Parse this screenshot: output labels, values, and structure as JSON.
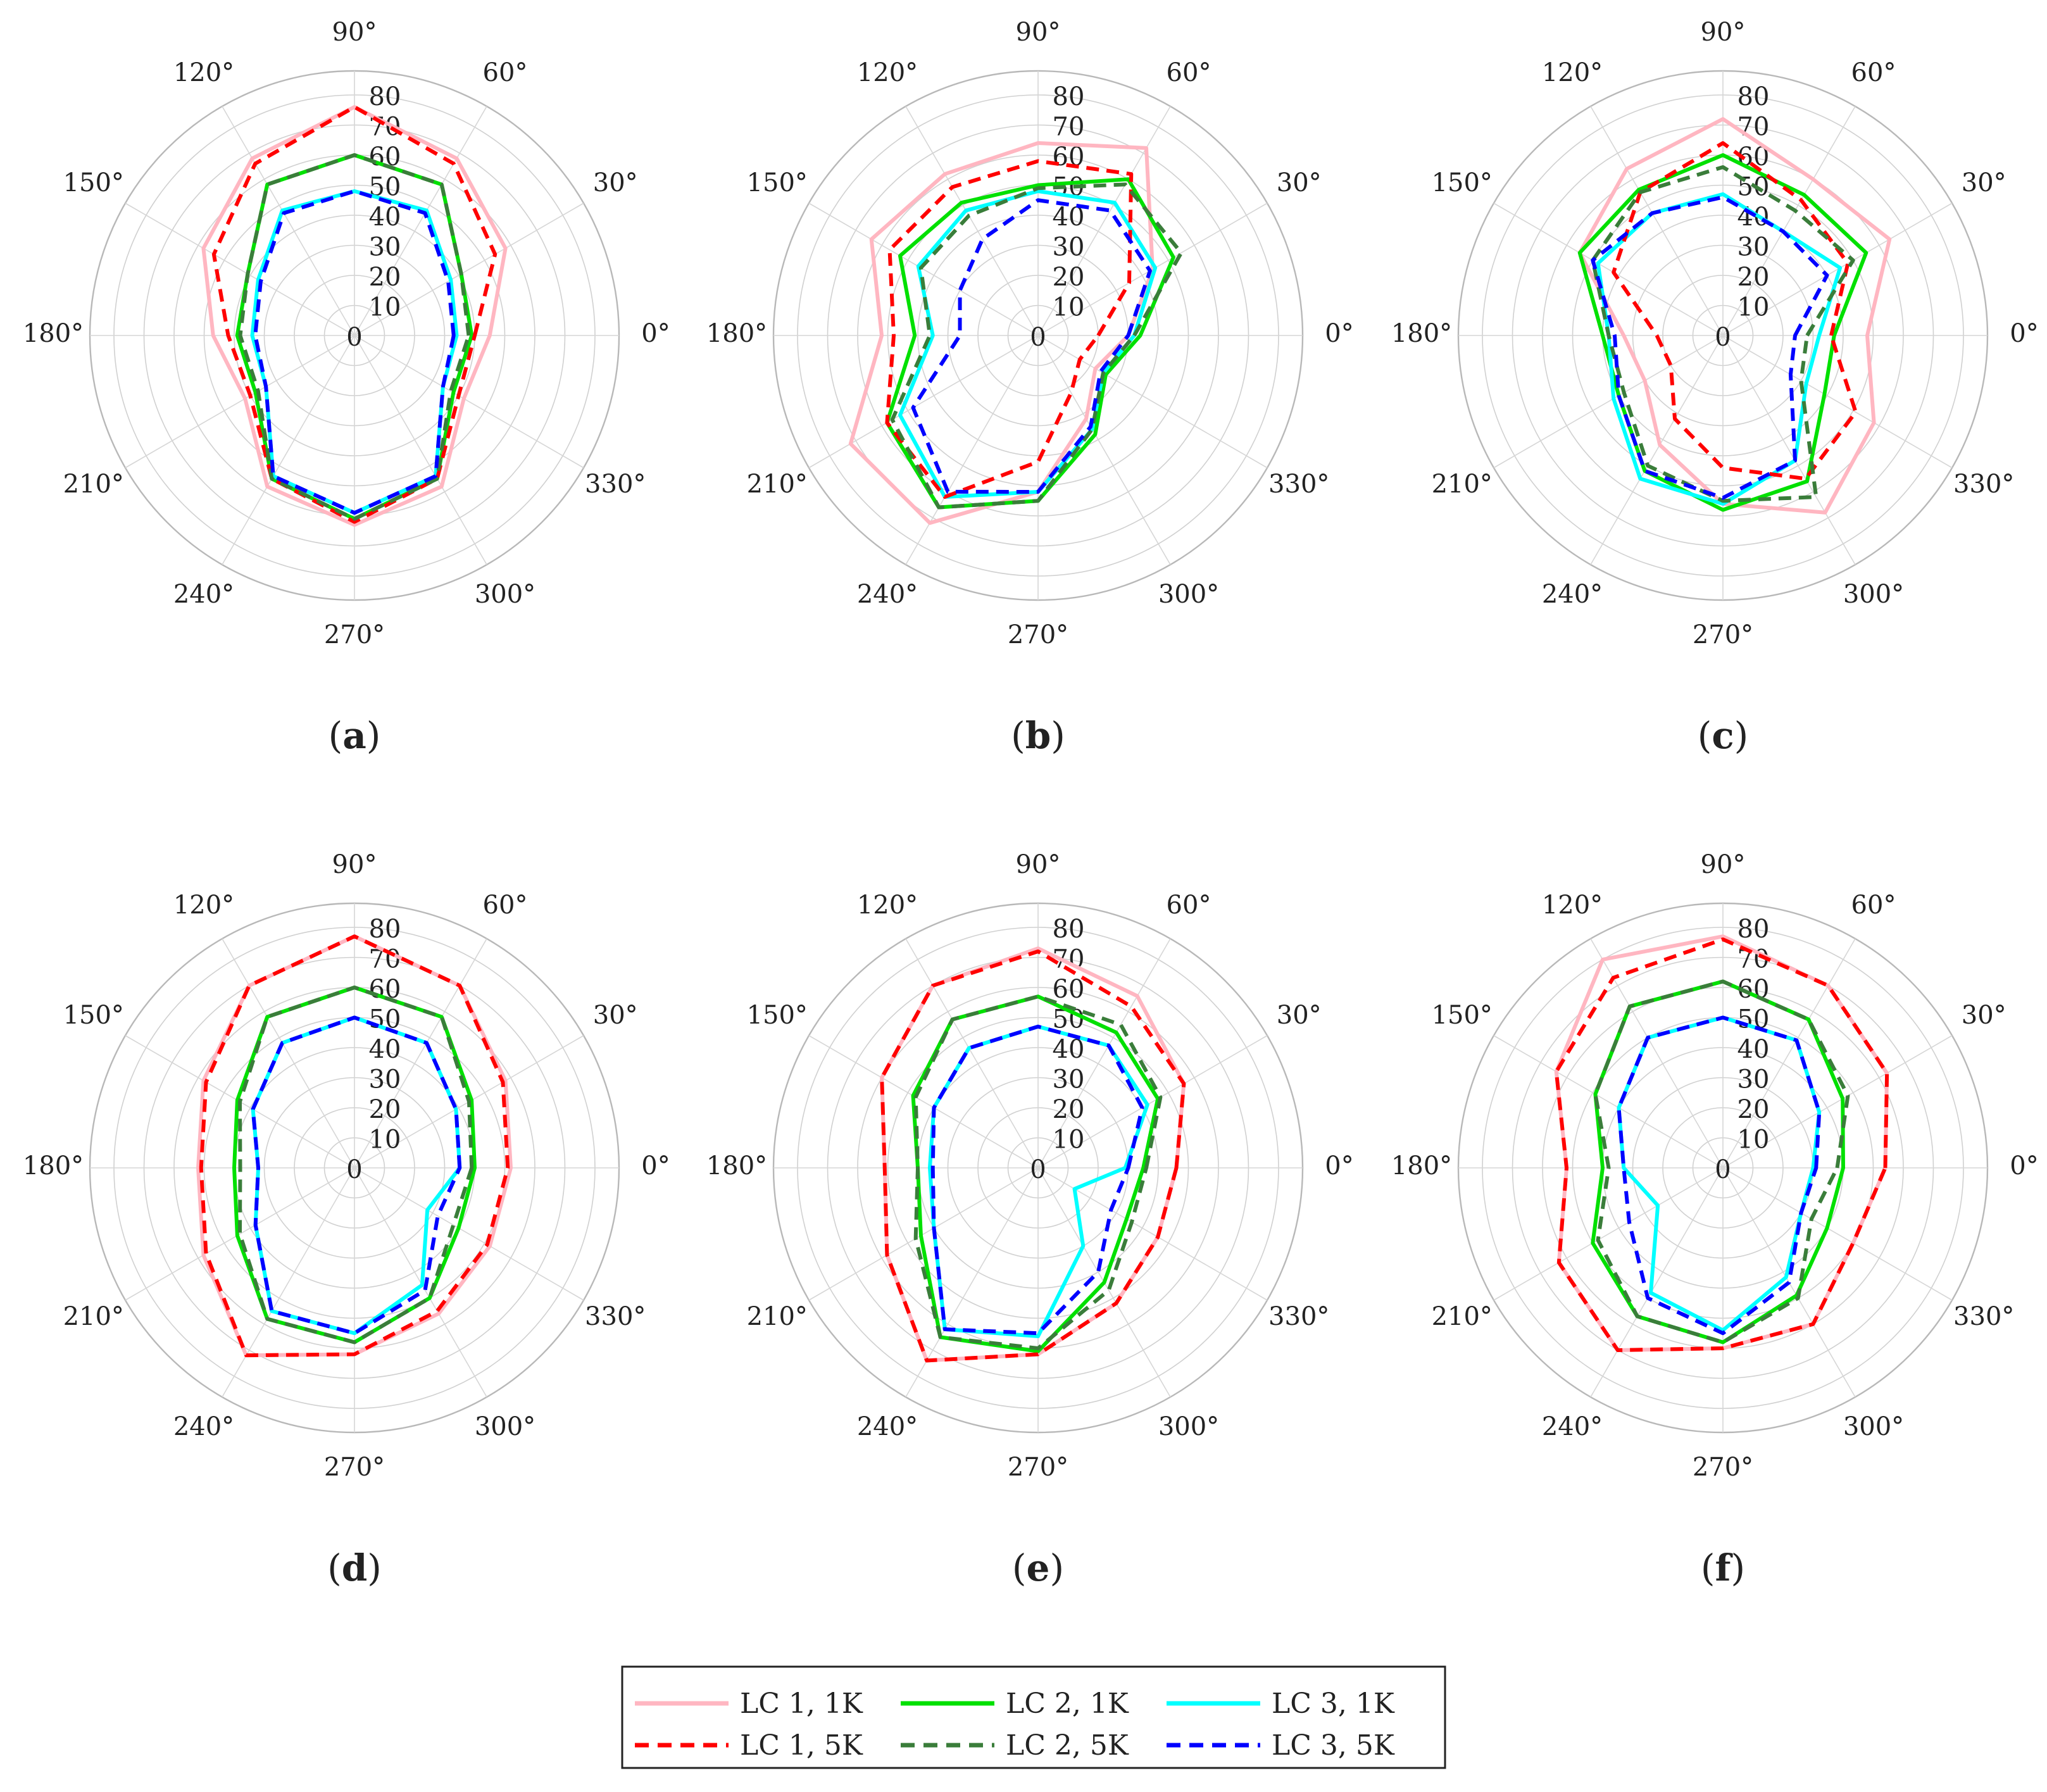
{
  "chart_data": [
    {
      "type": "polar-line",
      "panel_label": "a",
      "radial_range": [
        0,
        80
      ],
      "radial_ticks": [
        "0",
        "10",
        "20",
        "30",
        "40",
        "50",
        "60",
        "70",
        "80"
      ],
      "angle_ticks": [
        "0°",
        "30°",
        "60°",
        "90°",
        "120°",
        "150°",
        "180°",
        "210°",
        "240°",
        "270°",
        "300°",
        "330°"
      ],
      "angles_deg": [
        0,
        30,
        60,
        90,
        120,
        150,
        180,
        210,
        240,
        270,
        300,
        330
      ],
      "series": [
        {
          "name": "LC 1, 1K",
          "values": [
            45,
            58,
            68,
            76,
            68,
            58,
            47,
            42,
            58,
            63,
            58,
            42
          ]
        },
        {
          "name": "LC 1, 5K",
          "values": [
            40,
            54,
            66,
            76,
            66,
            54,
            42,
            40,
            55,
            62,
            55,
            40
          ]
        },
        {
          "name": "LC 2, 1K",
          "values": [
            39,
            41,
            58,
            60,
            58,
            41,
            39,
            38,
            55,
            61,
            55,
            38
          ]
        },
        {
          "name": "LC 2, 5K",
          "values": [
            38,
            41,
            58,
            60,
            58,
            41,
            38,
            37,
            55,
            61,
            55,
            37
          ]
        },
        {
          "name": "LC 3, 1K",
          "values": [
            34,
            37,
            48,
            48,
            48,
            37,
            34,
            34,
            54,
            59,
            54,
            34
          ]
        },
        {
          "name": "LC 3, 5K",
          "values": [
            33,
            36,
            47,
            48,
            47,
            36,
            33,
            34,
            54,
            59,
            54,
            34
          ]
        }
      ]
    },
    {
      "type": "polar-line",
      "panel_label": "b",
      "radial_range": [
        0,
        80
      ],
      "radial_ticks": [
        "0",
        "10",
        "20",
        "30",
        "40",
        "50",
        "60",
        "70",
        "80"
      ],
      "angle_ticks": [
        "0°",
        "30°",
        "60°",
        "90°",
        "120°",
        "150°",
        "180°",
        "210°",
        "240°",
        "270°",
        "300°",
        "330°"
      ],
      "angles_deg": [
        0,
        30,
        60,
        90,
        120,
        150,
        180,
        210,
        240,
        270,
        300,
        330
      ],
      "series": [
        {
          "name": "LC 1, 1K",
          "values": [
            30,
            44,
            72,
            64,
            62,
            64,
            52,
            72,
            72,
            52,
            32,
            22
          ]
        },
        {
          "name": "LC 1, 5K",
          "values": [
            20,
            35,
            62,
            58,
            57,
            57,
            48,
            58,
            62,
            42,
            22,
            16
          ]
        },
        {
          "name": "LC 2, 1K",
          "values": [
            34,
            52,
            60,
            50,
            51,
            53,
            41,
            58,
            66,
            55,
            38,
            26
          ]
        },
        {
          "name": "LC 2, 5K",
          "values": [
            32,
            55,
            58,
            49,
            46,
            45,
            36,
            56,
            66,
            55,
            36,
            25
          ]
        },
        {
          "name": "LC 3, 1K",
          "values": [
            32,
            45,
            51,
            48,
            48,
            46,
            35,
            53,
            62,
            52,
            36,
            25
          ]
        },
        {
          "name": "LC 3, 5K",
          "values": [
            30,
            43,
            48,
            45,
            37,
            30,
            26,
            48,
            60,
            52,
            35,
            24
          ]
        }
      ]
    },
    {
      "type": "polar-line",
      "panel_label": "c",
      "radial_range": [
        0,
        80
      ],
      "radial_ticks": [
        "0",
        "10",
        "20",
        "30",
        "40",
        "50",
        "60",
        "70",
        "80"
      ],
      "angle_ticks": [
        "0°",
        "30°",
        "60°",
        "90°",
        "120°",
        "150°",
        "180°",
        "210°",
        "240°",
        "270°",
        "300°",
        "330°"
      ],
      "angles_deg": [
        0,
        30,
        60,
        90,
        120,
        150,
        180,
        210,
        240,
        270,
        300,
        330
      ],
      "series": [
        {
          "name": "LC 1, 1K",
          "values": [
            48,
            64,
            60,
            72,
            64,
            55,
            33,
            30,
            42,
            56,
            68,
            58
          ]
        },
        {
          "name": "LC 1, 5K",
          "values": [
            36,
            48,
            52,
            64,
            55,
            42,
            22,
            20,
            32,
            44,
            55,
            51
          ]
        },
        {
          "name": "LC 2, 1K",
          "values": [
            37,
            55,
            54,
            60,
            56,
            55,
            40,
            40,
            52,
            58,
            56,
            39
          ]
        },
        {
          "name": "LC 2, 5K",
          "values": [
            28,
            50,
            48,
            56,
            55,
            50,
            38,
            38,
            50,
            55,
            62,
            30
          ]
        },
        {
          "name": "LC 3, 1K",
          "values": [
            32,
            45,
            40,
            47,
            47,
            48,
            38,
            42,
            55,
            56,
            48,
            32
          ]
        },
        {
          "name": "LC 3, 5K",
          "values": [
            24,
            40,
            40,
            46,
            47,
            50,
            36,
            40,
            52,
            54,
            48,
            26
          ]
        }
      ]
    },
    {
      "type": "polar-line",
      "panel_label": "d",
      "radial_range": [
        0,
        80
      ],
      "radial_ticks": [
        "0",
        "10",
        "20",
        "30",
        "40",
        "50",
        "60",
        "70",
        "80"
      ],
      "angle_ticks": [
        "0°",
        "30°",
        "60°",
        "90°",
        "120°",
        "150°",
        "180°",
        "210°",
        "240°",
        "270°",
        "300°",
        "330°"
      ],
      "angles_deg": [
        0,
        30,
        60,
        90,
        120,
        150,
        180,
        210,
        240,
        270,
        300,
        330
      ],
      "series": [
        {
          "name": "LC 1, 1K",
          "values": [
            52,
            58,
            70,
            77,
            70,
            58,
            52,
            58,
            72,
            62,
            56,
            52
          ]
        },
        {
          "name": "LC 1, 5K",
          "values": [
            51,
            57,
            70,
            77,
            70,
            57,
            51,
            57,
            72,
            62,
            55,
            51
          ]
        },
        {
          "name": "LC 2, 1K",
          "values": [
            40,
            45,
            58,
            60,
            58,
            45,
            40,
            45,
            58,
            58,
            50,
            40
          ]
        },
        {
          "name": "LC 2, 5K",
          "values": [
            39,
            44,
            58,
            60,
            58,
            44,
            38,
            44,
            58,
            58,
            50,
            38
          ]
        },
        {
          "name": "LC 3, 1K",
          "values": [
            35,
            39,
            48,
            50,
            48,
            39,
            32,
            38,
            55,
            55,
            45,
            28
          ]
        },
        {
          "name": "LC 3, 5K",
          "values": [
            35,
            39,
            48,
            50,
            48,
            39,
            32,
            38,
            55,
            55,
            47,
            32
          ]
        }
      ]
    },
    {
      "type": "polar-line",
      "panel_label": "e",
      "radial_range": [
        0,
        80
      ],
      "radial_ticks": [
        "0",
        "10",
        "20",
        "30",
        "40",
        "50",
        "60",
        "70",
        "80"
      ],
      "angle_ticks": [
        "0°",
        "30°",
        "60°",
        "90°",
        "120°",
        "150°",
        "180°",
        "210°",
        "240°",
        "270°",
        "300°",
        "330°"
      ],
      "angles_deg": [
        0,
        30,
        60,
        90,
        120,
        150,
        180,
        210,
        240,
        270,
        300,
        330
      ],
      "series": [
        {
          "name": "LC 1, 1K",
          "values": [
            46,
            56,
            66,
            73,
            70,
            60,
            51,
            58,
            74,
            62,
            52,
            46
          ]
        },
        {
          "name": "LC 1, 5K",
          "values": [
            46,
            56,
            62,
            72,
            70,
            60,
            51,
            58,
            74,
            62,
            52,
            46
          ]
        },
        {
          "name": "LC 2, 1K",
          "values": [
            35,
            46,
            52,
            57,
            57,
            48,
            40,
            45,
            65,
            61,
            44,
            34
          ]
        },
        {
          "name": "LC 2, 5K",
          "values": [
            36,
            47,
            55,
            57,
            57,
            47,
            40,
            47,
            65,
            60,
            47,
            36
          ]
        },
        {
          "name": "LC 3, 1K",
          "values": [
            29,
            42,
            47,
            47,
            46,
            40,
            36,
            40,
            62,
            56,
            30,
            14
          ]
        },
        {
          "name": "LC 3, 5K",
          "values": [
            30,
            40,
            47,
            47,
            46,
            40,
            35,
            40,
            62,
            55,
            40,
            28
          ]
        }
      ]
    },
    {
      "type": "polar-line",
      "panel_label": "f",
      "radial_range": [
        0,
        80
      ],
      "radial_ticks": [
        "0",
        "10",
        "20",
        "30",
        "40",
        "50",
        "60",
        "70",
        "80"
      ],
      "angle_ticks": [
        "0°",
        "30°",
        "60°",
        "90°",
        "120°",
        "150°",
        "180°",
        "210°",
        "240°",
        "270°",
        "300°",
        "330°"
      ],
      "angles_deg": [
        0,
        30,
        60,
        90,
        120,
        150,
        180,
        210,
        240,
        270,
        300,
        330
      ],
      "series": [
        {
          "name": "LC 1, 1K",
          "values": [
            54,
            63,
            70,
            77,
            80,
            64,
            52,
            63,
            70,
            60,
            60,
            50
          ]
        },
        {
          "name": "LC 1, 5K",
          "values": [
            54,
            63,
            70,
            76,
            73,
            64,
            52,
            63,
            70,
            60,
            60,
            50
          ]
        },
        {
          "name": "LC 2, 1K",
          "values": [
            40,
            46,
            57,
            62,
            62,
            49,
            40,
            50,
            57,
            58,
            49,
            40
          ]
        },
        {
          "name": "LC 2, 5K",
          "values": [
            38,
            48,
            57,
            62,
            62,
            49,
            38,
            48,
            57,
            58,
            50,
            34
          ]
        },
        {
          "name": "LC 3, 1K",
          "values": [
            30,
            37,
            49,
            50,
            50,
            40,
            33,
            25,
            48,
            54,
            42,
            30
          ]
        },
        {
          "name": "LC 3, 5K",
          "values": [
            31,
            37,
            49,
            50,
            50,
            40,
            33,
            36,
            50,
            55,
            44,
            30
          ]
        }
      ]
    }
  ],
  "legend": [
    {
      "label": "LC 1, 1K",
      "color": "#ffb6c1",
      "dash": "solid"
    },
    {
      "label": "LC 2, 1K",
      "color": "#00e000",
      "dash": "solid"
    },
    {
      "label": "LC 3, 1K",
      "color": "#00ffff",
      "dash": "solid"
    },
    {
      "label": "LC 1, 5K",
      "color": "#ff0000",
      "dash": "dashed"
    },
    {
      "label": "LC 2, 5K",
      "color": "#3a7d3a",
      "dash": "dashed"
    },
    {
      "label": "LC 3, 5K",
      "color": "#0000ff",
      "dash": "dashed"
    }
  ]
}
